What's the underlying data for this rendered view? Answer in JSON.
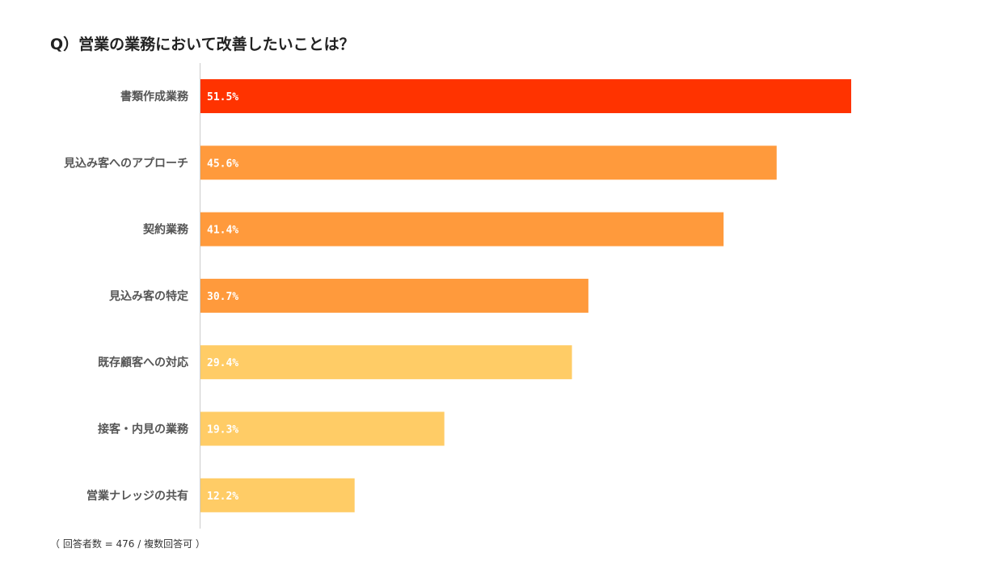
{
  "title": "Q）営業の業務において改善したいことは？",
  "footnote": "（ 回答者数 = 476 / 複数回答可 ）",
  "colors": {
    "highest": "#ff3300",
    "high": "#ff9a3c",
    "low": "#ffcc66",
    "axis": "#cccccc"
  },
  "chart_data": {
    "type": "bar",
    "orientation": "horizontal",
    "title": "Q）営業の業務において改善したいことは？",
    "categories": [
      "書類作成業務",
      "見込み客へのアプローチ",
      "契約業務",
      "見込み客の特定",
      "既存顧客への対応",
      "接客・内見の業務",
      "営業ナレッジの共有"
    ],
    "values": [
      51.5,
      45.6,
      41.4,
      30.7,
      29.4,
      19.3,
      12.2
    ],
    "value_labels": [
      "51.5%",
      "45.6%",
      "41.4%",
      "30.7%",
      "29.4%",
      "19.3%",
      "12.2%"
    ],
    "bar_colors": [
      "#ff3300",
      "#ff9a3c",
      "#ff9a3c",
      "#ff9a3c",
      "#ffcc66",
      "#ffcc66",
      "#ffcc66"
    ],
    "xlim": [
      0,
      60
    ],
    "grid": false
  }
}
